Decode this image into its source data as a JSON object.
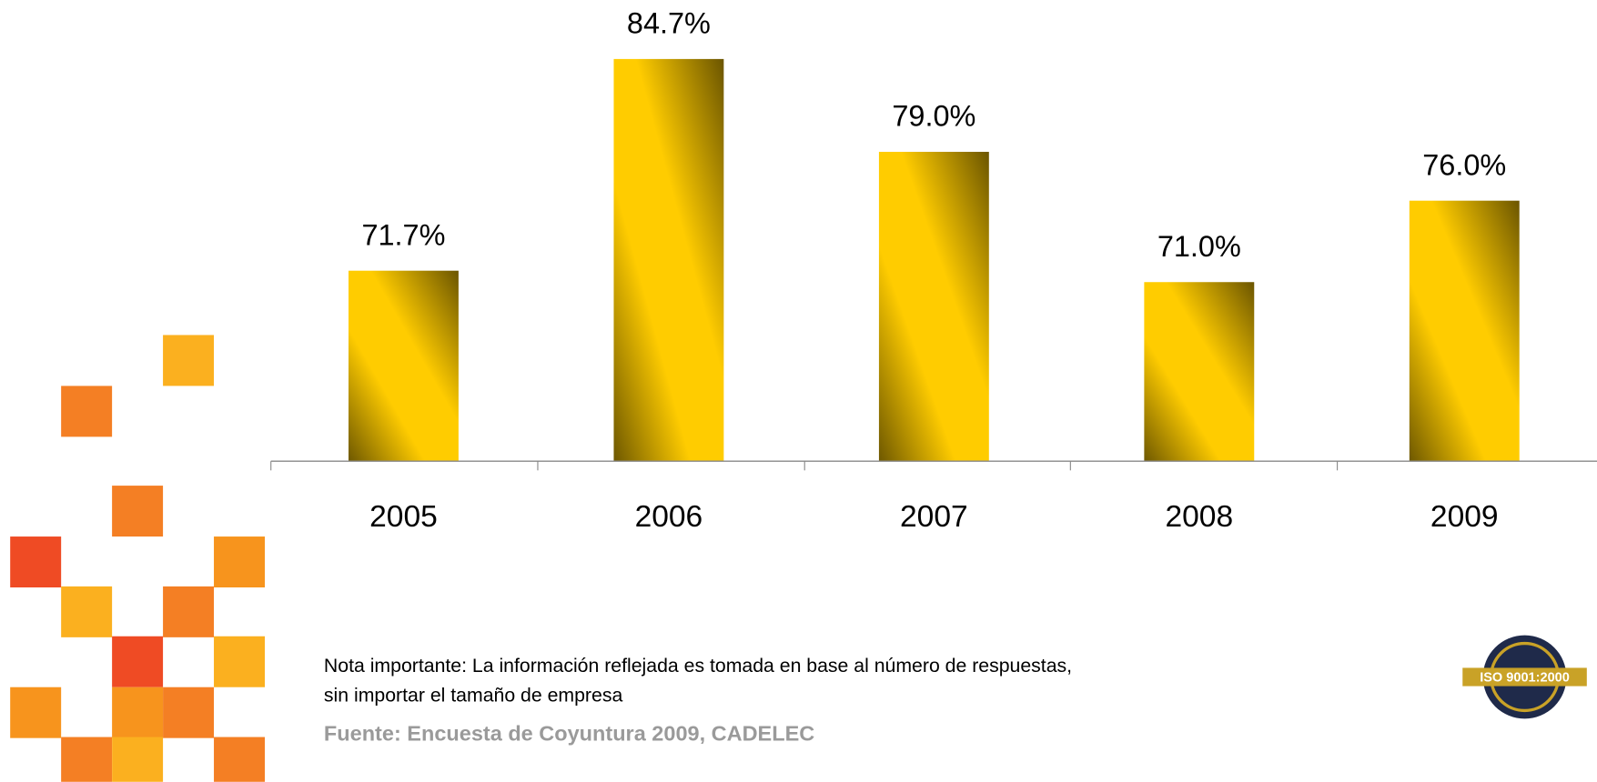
{
  "chart_data": {
    "type": "bar",
    "categories": [
      "2005",
      "2006",
      "2007",
      "2008",
      "2009"
    ],
    "values": [
      71.7,
      84.7,
      79.0,
      71.0,
      76.0
    ],
    "value_labels": [
      "71.7%",
      "84.7%",
      "79.0%",
      "71.0%",
      "76.0%"
    ],
    "color": "#ffcc00",
    "ylim": [
      60,
      90
    ]
  },
  "note": {
    "line1": "Nota importante: La información reflejada es tomada en base al número de respuestas,",
    "line2": "sin importar el tamaño de empresa",
    "source": "Fuente: Encuesta de Coyuntura 2009, CADELEC"
  },
  "logo": {
    "text": "ISO 9001:2000"
  }
}
